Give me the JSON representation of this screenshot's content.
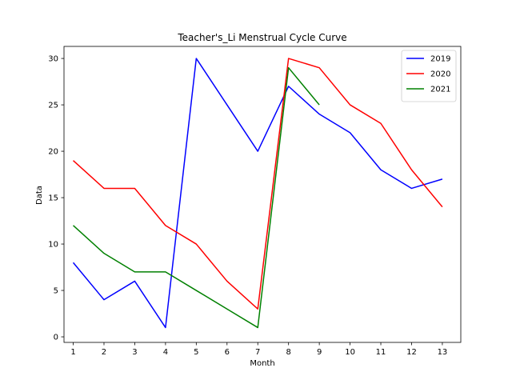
{
  "chart_data": {
    "type": "line",
    "title": "Teacher's_Li Menstrual Cycle Curve",
    "xlabel": "Month",
    "ylabel": "Data",
    "xlim": [
      0.7,
      13.6
    ],
    "ylim": [
      -0.6,
      31.3
    ],
    "xticks": [
      1,
      2,
      3,
      4,
      5,
      6,
      7,
      8,
      9,
      10,
      11,
      12,
      13
    ],
    "yticks": [
      0,
      5,
      10,
      15,
      20,
      25,
      30
    ],
    "grid": false,
    "legend_position": "top-right",
    "series": [
      {
        "name": "2019",
        "color": "#0000ff",
        "x": [
          1,
          2,
          3,
          4,
          5,
          6,
          7,
          8,
          9,
          10,
          11,
          12,
          13
        ],
        "y": [
          8,
          4,
          6,
          1,
          30,
          25,
          20,
          27,
          24,
          22,
          18,
          16,
          17
        ]
      },
      {
        "name": "2020",
        "color": "#ff0000",
        "x": [
          1,
          2,
          3,
          4,
          5,
          6,
          7,
          8,
          9,
          10,
          11,
          12,
          13
        ],
        "y": [
          19,
          16,
          16,
          12,
          10,
          6,
          3,
          30,
          29,
          25,
          23,
          18,
          14
        ]
      },
      {
        "name": "2021",
        "color": "#008000",
        "x": [
          1,
          2,
          3,
          4,
          5,
          6,
          7,
          8,
          9
        ],
        "y": [
          12,
          9,
          7,
          7,
          5,
          3,
          1,
          29,
          25
        ]
      }
    ]
  }
}
